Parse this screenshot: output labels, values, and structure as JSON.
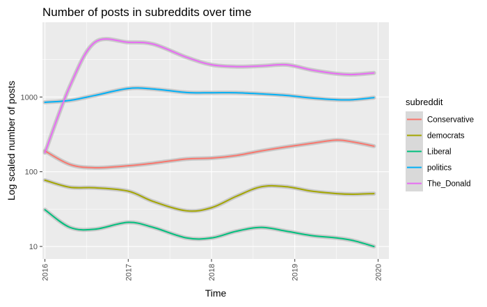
{
  "chart_data": {
    "type": "line",
    "title": "Number of posts in subreddits over time",
    "xlabel": "Time",
    "ylabel": "Log scaled number of posts",
    "x_ticks": [
      "2016",
      "2017",
      "2018",
      "2019",
      "2020"
    ],
    "y_ticks": [
      "10",
      "100",
      "1000"
    ],
    "xlim": [
      2015.97,
      2020.13
    ],
    "ylim": [
      6.8,
      10000
    ],
    "y_scale": "log10",
    "grid": true,
    "legend": {
      "title": "subreddit",
      "placement": "right"
    },
    "x": [
      2016.0,
      2016.3,
      2016.6,
      2017.0,
      2017.3,
      2017.7,
      2018.0,
      2018.3,
      2018.6,
      2018.9,
      2019.2,
      2019.5,
      2019.7,
      2019.95
    ],
    "series": [
      {
        "name": "Conservative",
        "color": "#F8766D",
        "values": [
          190,
          125,
          113,
          120,
          130,
          148,
          152,
          165,
          190,
          215,
          240,
          265,
          250,
          220
        ]
      },
      {
        "name": "democrats",
        "color": "#A3A500",
        "values": [
          77,
          62,
          61,
          55,
          40,
          30,
          33,
          47,
          63,
          63,
          55,
          51,
          50,
          51
        ]
      },
      {
        "name": "Liberal",
        "color": "#00BF7D",
        "values": [
          31,
          18,
          17,
          21,
          18,
          13,
          13,
          16,
          18,
          16,
          14,
          13,
          12,
          10
        ]
      },
      {
        "name": "politics",
        "color": "#00B0F6",
        "values": [
          850,
          900,
          1050,
          1300,
          1280,
          1150,
          1140,
          1140,
          1100,
          1050,
          970,
          920,
          920,
          980
        ]
      },
      {
        "name": "The_Donald",
        "color": "#E76BF3",
        "values": [
          180,
          1400,
          5400,
          5400,
          5100,
          3400,
          2700,
          2550,
          2600,
          2700,
          2300,
          2050,
          2000,
          2100
        ]
      }
    ]
  }
}
